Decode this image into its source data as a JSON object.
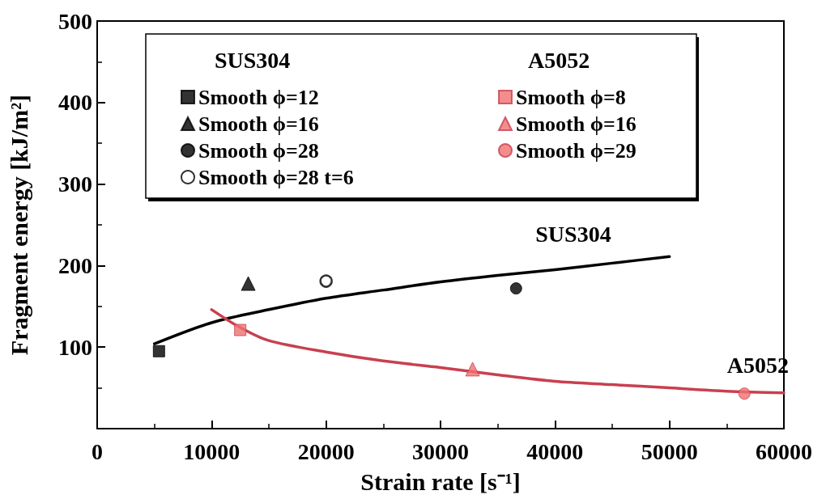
{
  "chart_data": {
    "type": "scatter",
    "xlabel": "Strain rate [s⁻¹]",
    "ylabel": "Fragment energy [kJ/m²]",
    "xlim": [
      0,
      60000
    ],
    "xticks": [
      0,
      10000,
      20000,
      30000,
      40000,
      50000,
      60000
    ],
    "ylim": [
      0,
      500
    ],
    "yticks": [
      100,
      200,
      300,
      400,
      500
    ],
    "grid": false,
    "legend": "top",
    "annotations": [
      "SUS304",
      "A5052"
    ],
    "series": [
      {
        "name": "Smooth ϕ=12",
        "color": "#000000",
        "marker": "square",
        "x": [
          5400
        ],
        "values": [
          95
        ]
      },
      {
        "name": "Smooth ϕ=16",
        "color": "#000000",
        "marker": "triangle",
        "x": [
          13200
        ],
        "values": [
          178
        ]
      },
      {
        "name": "Smooth ϕ=28",
        "color": "#000000",
        "marker": "circle",
        "x": [
          36600
        ],
        "values": [
          172
        ]
      },
      {
        "name": "Smooth ϕ=28 t=6",
        "color": "#ffffff",
        "marker": "circle",
        "x": [
          20000
        ],
        "values": [
          181
        ]
      },
      {
        "name": "Smooth ϕ=8",
        "color": "#f07070",
        "marker": "square",
        "x": [
          12500
        ],
        "values": [
          121
        ]
      },
      {
        "name": "Smooth ϕ=16",
        "color": "#f07070",
        "marker": "triangle",
        "x": [
          32800
        ],
        "values": [
          73
        ]
      },
      {
        "name": "Smooth ϕ=29",
        "color": "#f07070",
        "marker": "circle",
        "x": [
          56550
        ],
        "values": [
          43
        ]
      },
      {
        "name": "SUS304",
        "type": "line",
        "color": "#000000",
        "marker": "none",
        "x": [
          5000,
          10000,
          15000,
          20000,
          25000,
          30000,
          35000,
          40000,
          45000,
          50000
        ],
        "values": [
          104,
          130,
          146,
          160,
          170,
          180,
          188,
          195,
          203,
          211
        ]
      },
      {
        "name": "A5052",
        "type": "line",
        "color": "#c8404f",
        "marker": "none",
        "x": [
          10000,
          12500,
          15000,
          20000,
          25000,
          30000,
          35000,
          40000,
          45000,
          50000,
          55000,
          60000
        ],
        "values": [
          146,
          124,
          108,
          94,
          83,
          75,
          66,
          58,
          54,
          50,
          46,
          44
        ]
      }
    ]
  }
}
